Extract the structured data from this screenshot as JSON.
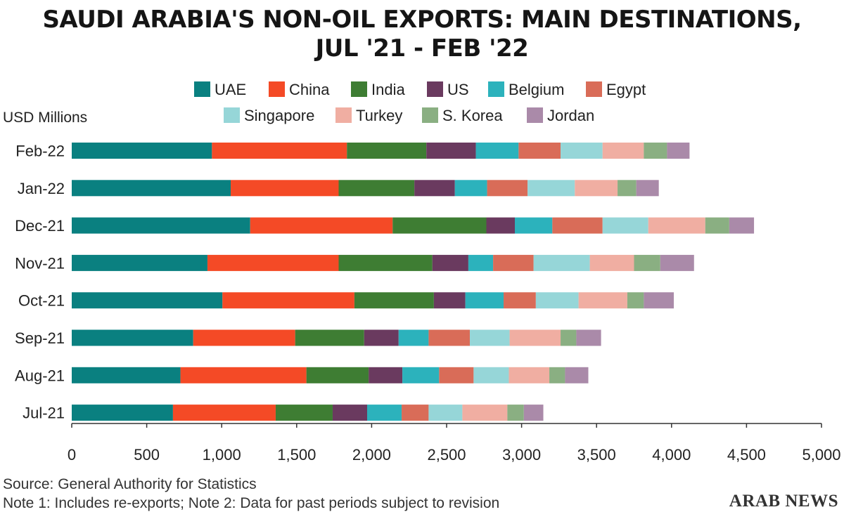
{
  "chart_data": {
    "type": "bar",
    "orientation": "horizontal",
    "stacked": true,
    "title_lines": [
      "SAUDI ARABIA'S NON-OIL EXPORTS: MAIN DESTINATIONS,",
      "JUL '21 - FEB '22"
    ],
    "ylabel": "USD Millions",
    "xlabel": "",
    "xlim": [
      0,
      5000
    ],
    "xticks": [
      0,
      500,
      1000,
      1500,
      2000,
      2500,
      3000,
      3500,
      4000,
      4500,
      5000
    ],
    "xtick_labels": [
      "0",
      "500",
      "1,000",
      "1,500",
      "2,000",
      "2,500",
      "3,000",
      "3,500",
      "4,000",
      "4,500",
      "5,000"
    ],
    "grid": false,
    "legend_position": "top-center",
    "categories": [
      "Feb-22",
      "Jan-22",
      "Dec-21",
      "Nov-21",
      "Oct-21",
      "Sep-21",
      "Aug-21",
      "Jul-21"
    ],
    "series": [
      {
        "name": "UAE",
        "color": "#0a8080",
        "values": [
          935,
          1060,
          1190,
          905,
          1005,
          810,
          725,
          675
        ]
      },
      {
        "name": "China",
        "color": "#f44a26",
        "values": [
          900,
          720,
          950,
          875,
          880,
          680,
          840,
          685
        ]
      },
      {
        "name": "India",
        "color": "#3e7d33",
        "values": [
          530,
          505,
          625,
          625,
          530,
          460,
          415,
          380
        ]
      },
      {
        "name": "US",
        "color": "#6a3a5f",
        "values": [
          330,
          270,
          190,
          240,
          210,
          230,
          225,
          230
        ]
      },
      {
        "name": "Belgium",
        "color": "#2cb2bc",
        "values": [
          285,
          215,
          250,
          165,
          255,
          200,
          245,
          230
        ]
      },
      {
        "name": "Egypt",
        "color": "#d96c58",
        "values": [
          280,
          270,
          335,
          270,
          215,
          275,
          230,
          180
        ]
      },
      {
        "name": "Singapore",
        "color": "#96d6d8",
        "values": [
          280,
          315,
          305,
          375,
          285,
          265,
          235,
          225
        ]
      },
      {
        "name": "Turkey",
        "color": "#f0aea2",
        "values": [
          275,
          285,
          380,
          295,
          325,
          340,
          270,
          300
        ]
      },
      {
        "name": "S. Korea",
        "color": "#8aaf82",
        "values": [
          155,
          125,
          160,
          175,
          110,
          105,
          105,
          110
        ]
      },
      {
        "name": "Jordan",
        "color": "#aa8aa9",
        "values": [
          150,
          150,
          165,
          225,
          200,
          165,
          155,
          130
        ]
      }
    ]
  },
  "footer": {
    "source": "Source: General Authority for Statistics",
    "note": "Note 1: Includes re-exports; Note 2: Data for past periods subject to revision",
    "brand": "ARAB NEWS"
  }
}
